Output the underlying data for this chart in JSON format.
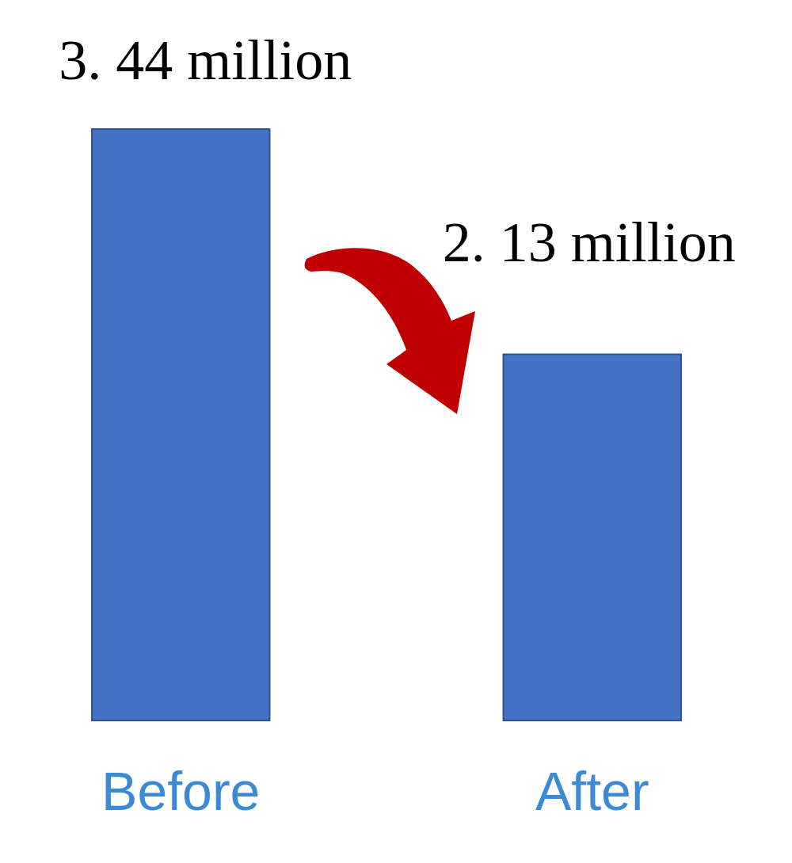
{
  "chart_data": {
    "type": "bar",
    "categories": [
      "Before",
      "After"
    ],
    "values": [
      3.44,
      2.13
    ],
    "color": "#4472c4",
    "value_labels": [
      "3. 44 million",
      "2. 13 million"
    ]
  }
}
